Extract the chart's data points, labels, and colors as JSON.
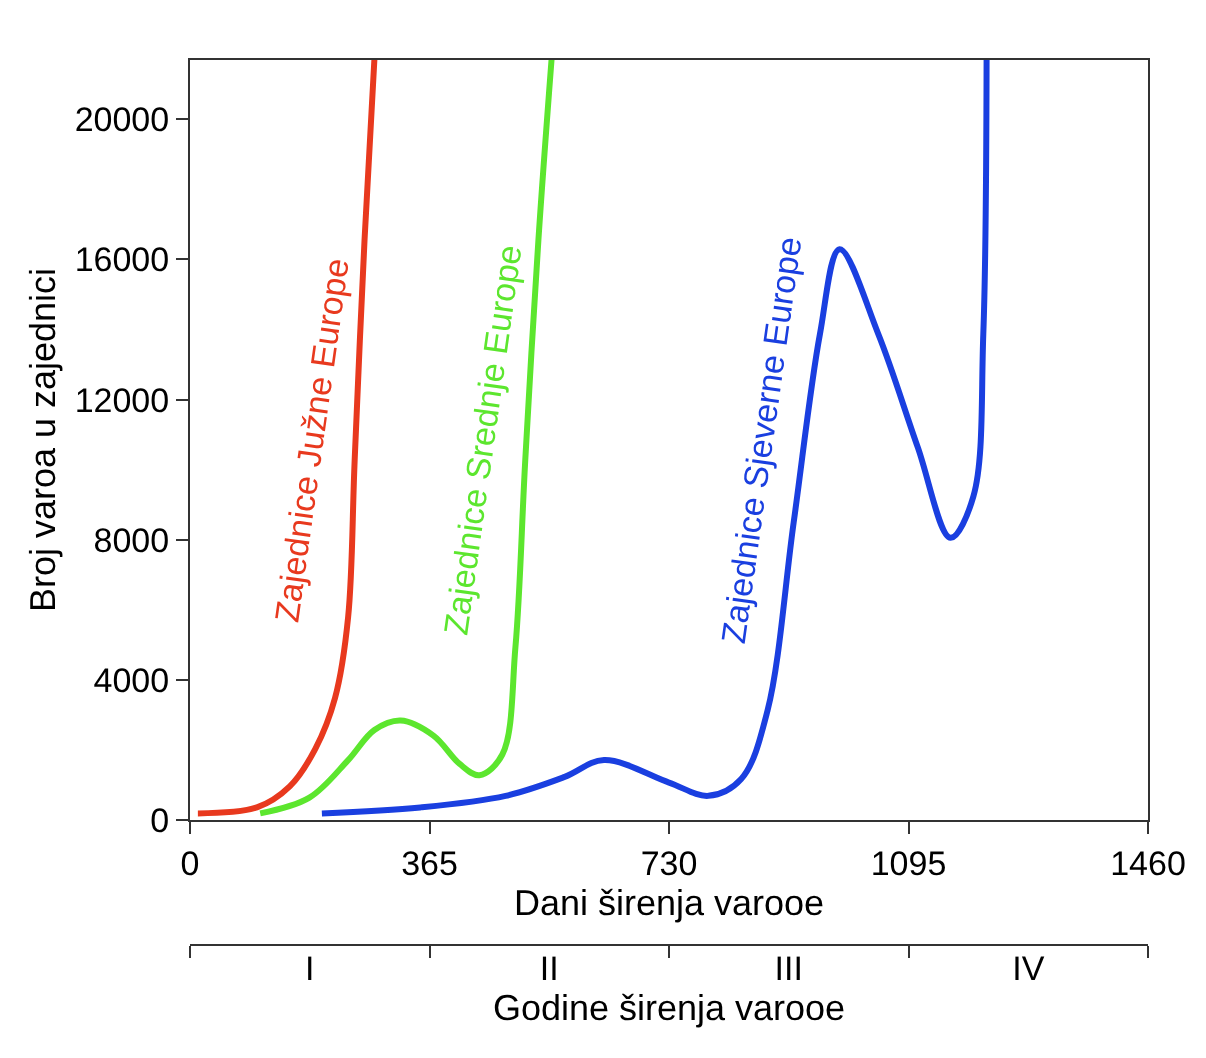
{
  "chart_data": {
    "type": "line",
    "xlabel": "Dani širenja varooe",
    "ylabel": "Broj varoa u zajednici",
    "xlim": [
      0,
      1460
    ],
    "xticks": [
      0,
      365,
      730,
      1095,
      1460
    ],
    "ylim": [
      0,
      21700
    ],
    "yticks": [
      0,
      4000,
      8000,
      12000,
      16000,
      20000
    ],
    "x2label": "Godine širenja varooe",
    "annotations": [
      "I",
      "II",
      "III",
      "IV"
    ],
    "legend": false,
    "marker": "none",
    "line_style": "solid",
    "series": [
      {
        "name": "Zajednice Južne Europe",
        "color": "#e8391e",
        "x": [
          12,
          102,
          152,
          191,
          221,
          241,
          251,
          266,
          281
        ],
        "values": [
          200,
          370,
          970,
          2040,
          3490,
          5800,
          10300,
          16560,
          21700
        ]
      },
      {
        "name": "Zajednice Srednje Europe",
        "color": "#5ce62e",
        "x": [
          107,
          182,
          241,
          281,
          321,
          371,
          411,
          441,
          476,
          496,
          511,
          531,
          551
        ],
        "values": [
          200,
          650,
          1720,
          2580,
          2850,
          2420,
          1610,
          1290,
          1880,
          4950,
          10300,
          16560,
          21700
        ]
      },
      {
        "name": "Zajednice Sjeverne Europe",
        "color": "#1a3fe0",
        "x": [
          201,
          351,
          481,
          571,
          631,
          730,
          790,
          840,
          880,
          920,
          960,
          990,
          1049,
          1109,
          1159,
          1194,
          1209,
          1214
        ],
        "values": [
          200,
          370,
          700,
          1240,
          1720,
          1080,
          700,
          1180,
          3120,
          8500,
          13870,
          16290,
          13870,
          10650,
          8060,
          9250,
          13870,
          21700
        ]
      }
    ]
  }
}
